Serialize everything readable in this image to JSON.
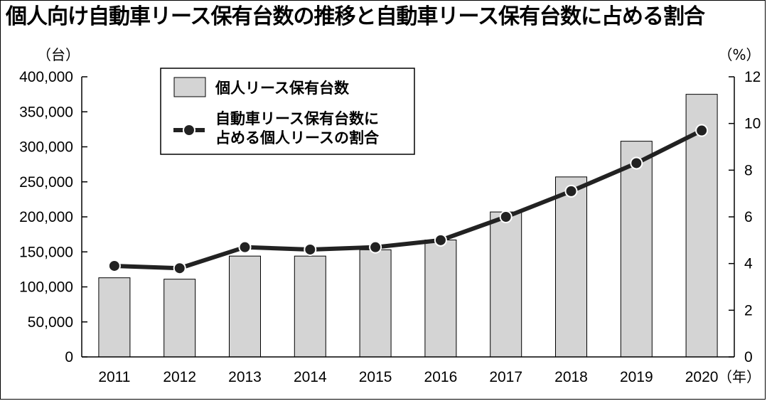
{
  "chart_data": {
    "type": "bar",
    "title": "個人向け自動車リース保有台数の推移と自動車リース保有台数に占める割合",
    "categories": [
      "2011",
      "2012",
      "2013",
      "2014",
      "2015",
      "2016",
      "2017",
      "2018",
      "2019",
      "2020"
    ],
    "x_unit": "（年）",
    "left_unit": "（台）",
    "right_unit": "（%）",
    "y_ticks": [
      "0",
      "50,000",
      "100,000",
      "150,000",
      "200,000",
      "250,000",
      "300,000",
      "350,000",
      "400,000"
    ],
    "y2_ticks": [
      "0",
      "2",
      "4",
      "6",
      "8",
      "10",
      "12"
    ],
    "ylim": [
      0,
      400000
    ],
    "y2lim": [
      0,
      12
    ],
    "grid": false,
    "legend_position": "top-left",
    "series": [
      {
        "name": "個人リース保有台数",
        "kind": "bar",
        "axis": "left",
        "color": "#d4d4d4",
        "values": [
          113000,
          111000,
          144000,
          144000,
          153000,
          167000,
          207000,
          257000,
          308000,
          375000
        ]
      },
      {
        "name_lines": [
          "自動車リース保有台数に",
          "占める個人リースの割合"
        ],
        "kind": "line",
        "axis": "right",
        "color": "#222222",
        "values": [
          3.9,
          3.8,
          4.7,
          4.6,
          4.7,
          5.0,
          6.0,
          7.1,
          8.3,
          9.7
        ]
      }
    ]
  }
}
